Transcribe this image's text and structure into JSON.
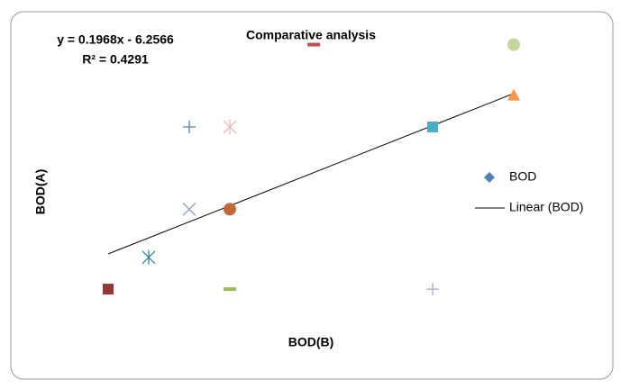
{
  "chart_data": {
    "type": "scatter",
    "title": "Comparative analysis",
    "x_label": "BOD(B)",
    "y_label": "BOD(A)",
    "series": [
      {
        "name": "BOD",
        "color": "#4f81bd",
        "x": [
          100,
          110,
          120,
          130,
          120,
          130,
          130,
          150.7,
          180,
          180,
          200,
          200
        ],
        "values": [
          9.1,
          13.0,
          29.0,
          29.0,
          18.9,
          18.9,
          9.1,
          39.1,
          29.0,
          9.1,
          39.1,
          32.9
        ],
        "point_colors": [
          "#953735",
          "#31859c",
          "#4f81bd",
          "#e6b9b8",
          "#8e9fd6",
          "#c0693a",
          "#9bbb59",
          "#c0504d",
          "#4bacc6",
          "#b3a2c7",
          "#c3d69b",
          "#f79646"
        ],
        "markers": [
          "square",
          "star",
          "plus",
          "star",
          "x",
          "circle",
          "dash",
          "dash",
          "square",
          "plus",
          "circle",
          "triangle"
        ]
      }
    ],
    "trendline": {
      "name": "Linear (BOD)",
      "slope": 0.1968,
      "intercept": -6.2566,
      "color": "#000000",
      "equation_label": "y = 0.1968x - 6.2566",
      "r2_label": "R² = 0.4291"
    },
    "xlim": [
      85,
      215
    ],
    "ylim": [
      5,
      42
    ],
    "legend": "right"
  }
}
